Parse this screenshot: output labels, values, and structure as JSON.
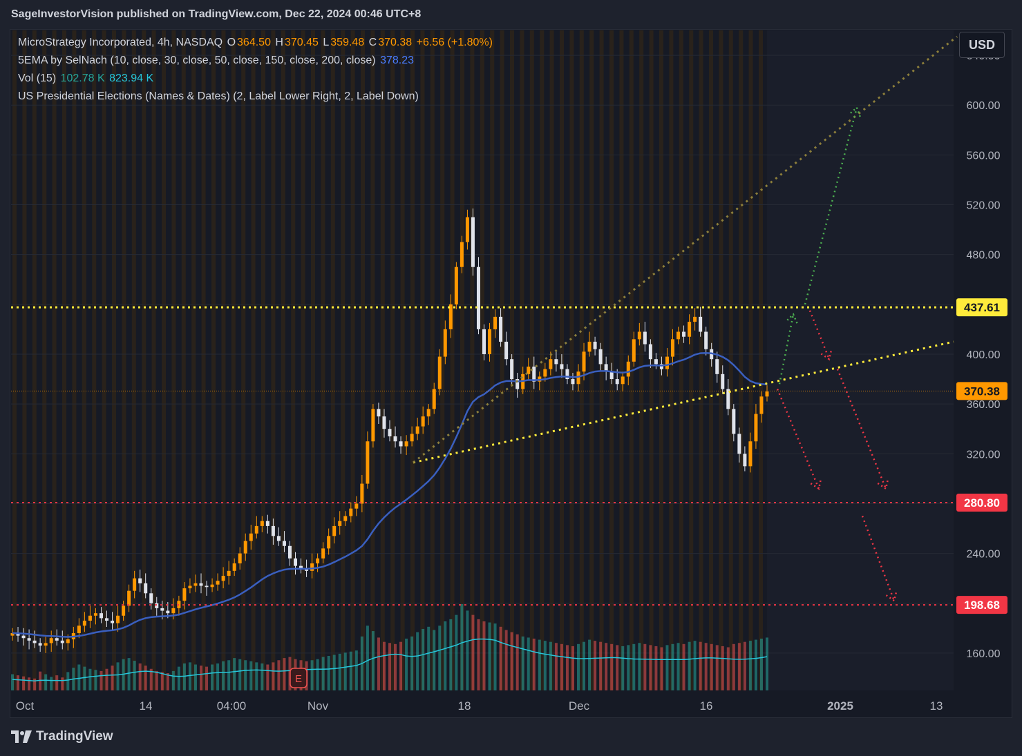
{
  "header": {
    "published": "SageInvestorVision published on TradingView.com, Dec 22, 2024 00:46 UTC+8"
  },
  "legend": {
    "symbol": "MicroStrategy Incorporated, 4h, NASDAQ",
    "o_label": "O",
    "o_value": "364.50",
    "h_label": "H",
    "h_value": "370.45",
    "l_label": "L",
    "l_value": "359.48",
    "c_label": "C",
    "c_value": "370.38",
    "change": "+6.56 (+1.80%)",
    "ema_name": "5EMA by SelNach (10, close, 30, close, 50, close, 150, close, 200, close)",
    "ema_value": "378.23",
    "vol_name": "Vol (15)",
    "vol_value1": "102.78 K",
    "vol_value2": "823.94 K",
    "elections": "US Presidential Elections (Names & Dates) (2, Label Lower Right, 2, Label Down)"
  },
  "currency_button": "USD",
  "footer": {
    "brand": "TradingView"
  },
  "earnings_marker": "E",
  "colors": {
    "background": "#161a25",
    "up": "#ff9800",
    "down": "#e0e3eb",
    "ema": "#3a5fbf",
    "volume_ma": "#26c6da",
    "vol_up": "#26a69a",
    "vol_down": "#ef5350",
    "resistance": "#ffeb3b",
    "support_red": "#f23645",
    "arrow_green": "#4caf50",
    "session_stripe": "#ff980030"
  },
  "chart_data": {
    "type": "candlestick",
    "ylim": [
      130,
      660
    ],
    "y_ticks": [
      160,
      200,
      240,
      280,
      320,
      360,
      400,
      440,
      480,
      520,
      560,
      600,
      640
    ],
    "y_tick_labels": [
      "160.00",
      "",
      "240.00",
      "",
      "320.00",
      "360.00",
      "400.00",
      "",
      "480.00",
      "520.00",
      "560.00",
      "600.00",
      "640.00"
    ],
    "x_labels": [
      "Oct",
      "14",
      "04:00",
      "Nov",
      "18",
      "Dec",
      "16",
      "2025",
      "13"
    ],
    "price_badges": [
      {
        "label": "437.61",
        "value": 437.61,
        "color": "#ffeb3b",
        "text_color": "#131722"
      },
      {
        "label": "370.38",
        "value": 370.38,
        "color": "#ff9800",
        "text_color": "#131722"
      },
      {
        "label": "280.80",
        "value": 280.8,
        "color": "#f23645",
        "text_color": "#ffffff"
      },
      {
        "label": "198.68",
        "value": 198.68,
        "color": "#f23645",
        "text_color": "#ffffff"
      }
    ],
    "horizontal_levels": [
      {
        "value": 437.61,
        "color": "#ffeb3b",
        "style": "dotted"
      },
      {
        "value": 280.8,
        "color": "#f23645",
        "style": "dotted"
      },
      {
        "value": 198.68,
        "color": "#f23645",
        "style": "dotted"
      }
    ],
    "close_series": [
      176,
      174,
      172,
      170,
      168,
      166,
      168,
      172,
      170,
      168,
      171,
      176,
      182,
      186,
      190,
      192,
      188,
      186,
      184,
      190,
      198,
      210,
      220,
      216,
      208,
      200,
      196,
      194,
      192,
      196,
      202,
      212,
      214,
      216,
      214,
      213,
      215,
      218,
      222,
      226,
      232,
      240,
      250,
      256,
      262,
      266,
      262,
      254,
      250,
      246,
      236,
      230,
      228,
      226,
      232,
      236,
      244,
      254,
      262,
      266,
      270,
      276,
      280,
      296,
      330,
      356,
      350,
      340,
      334,
      330,
      326,
      330,
      336,
      342,
      350,
      356,
      372,
      398,
      420,
      440,
      470,
      490,
      510,
      470,
      420,
      400,
      420,
      430,
      410,
      396,
      380,
      372,
      384,
      390,
      378,
      382,
      388,
      396,
      392,
      388,
      380,
      376,
      386,
      402,
      410,
      404,
      392,
      386,
      380,
      376,
      382,
      394,
      412,
      418,
      408,
      396,
      392,
      388,
      398,
      412,
      418,
      414,
      426,
      430,
      418,
      404,
      396,
      384,
      372,
      356,
      336,
      320,
      310,
      330,
      352,
      366,
      370
    ],
    "volume_series": [
      30,
      28,
      26,
      24,
      22,
      35,
      30,
      25,
      28,
      24,
      34,
      42,
      48,
      44,
      40,
      38,
      36,
      40,
      46,
      52,
      58,
      60,
      55,
      50,
      46,
      40,
      36,
      34,
      32,
      36,
      44,
      50,
      52,
      48,
      46,
      44,
      48,
      50,
      54,
      56,
      60,
      58,
      56,
      54,
      52,
      50,
      48,
      52,
      56,
      60,
      62,
      58,
      56,
      54,
      56,
      58,
      62,
      64,
      66,
      68,
      70,
      72,
      74,
      100,
      120,
      110,
      98,
      90,
      88,
      86,
      90,
      96,
      100,
      108,
      114,
      118,
      112,
      120,
      128,
      132,
      140,
      160,
      148,
      140,
      132,
      128,
      126,
      124,
      118,
      112,
      108,
      104,
      100,
      98,
      96,
      94,
      92,
      90,
      88,
      86,
      84,
      82,
      86,
      90,
      94,
      92,
      90,
      88,
      86,
      84,
      82,
      84,
      86,
      88,
      86,
      84,
      82,
      80,
      84,
      86,
      88,
      86,
      90,
      92,
      90,
      88,
      86,
      84,
      82,
      80,
      86,
      88,
      90,
      92,
      94,
      96,
      98
    ]
  }
}
